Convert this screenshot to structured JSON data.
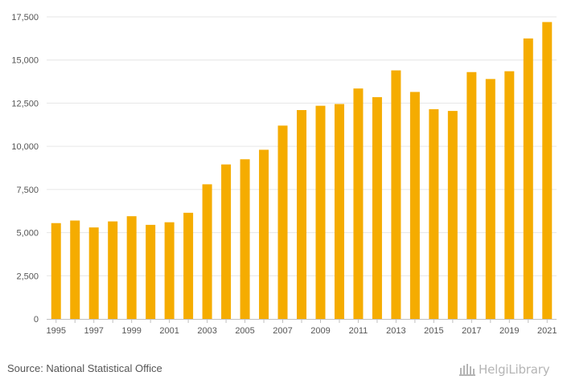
{
  "chart_data": {
    "type": "bar",
    "title": "",
    "xlabel": "",
    "ylabel": "",
    "ylim": [
      0,
      17500
    ],
    "yticks": [
      0,
      2500,
      5000,
      7500,
      10000,
      12500,
      15000,
      17500
    ],
    "ytick_labels": [
      "0",
      "2,500",
      "5,000",
      "7,500",
      "10,000",
      "12,500",
      "15,000",
      "17,500"
    ],
    "categories": [
      "1995",
      "1996",
      "1997",
      "1998",
      "1999",
      "2000",
      "2001",
      "2002",
      "2003",
      "2004",
      "2005",
      "2006",
      "2007",
      "2008",
      "2009",
      "2010",
      "2011",
      "2012",
      "2013",
      "2014",
      "2015",
      "2016",
      "2017",
      "2018",
      "2019",
      "2020",
      "2021"
    ],
    "xtick_labels": [
      "1995",
      "1997",
      "1999",
      "2001",
      "2003",
      "2005",
      "2007",
      "2009",
      "2011",
      "2013",
      "2015",
      "2017",
      "2019",
      "2021"
    ],
    "values": [
      5550,
      5700,
      5300,
      5650,
      5950,
      5450,
      5600,
      6150,
      7800,
      8950,
      9250,
      9800,
      11200,
      12100,
      12350,
      12450,
      13350,
      12850,
      14400,
      13150,
      12150,
      12050,
      14300,
      13900,
      14350,
      16250,
      17200
    ],
    "bar_color": "#f5ac00",
    "grid": true
  },
  "footer": {
    "source": "Source: National Statistical Office",
    "logo_text": "HelgiLibrary"
  }
}
